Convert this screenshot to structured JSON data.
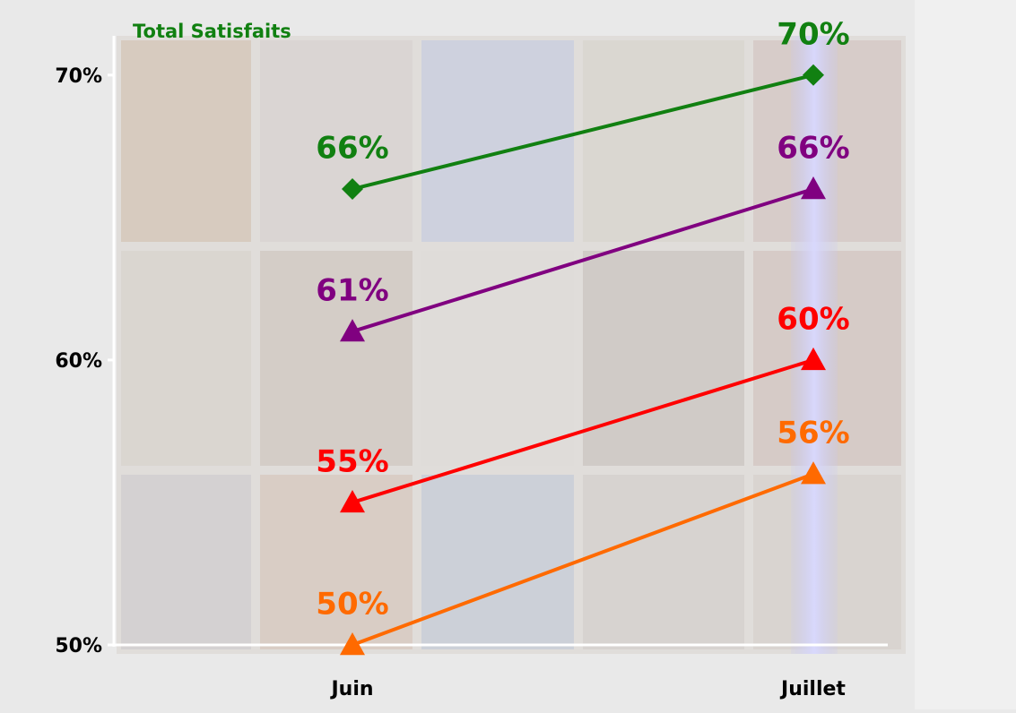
{
  "chart_data": {
    "type": "line",
    "categories": [
      "Juin",
      "Juillet"
    ],
    "series": [
      {
        "name": "Total Satisfaits",
        "color": "#118011",
        "marker": "diamond",
        "values": [
          66,
          70
        ],
        "value_labels": [
          "66%",
          "70%"
        ]
      },
      {
        "color": "#800080",
        "marker": "triangle",
        "values": [
          61,
          66
        ],
        "value_labels": [
          "61%",
          "66%"
        ]
      },
      {
        "color": "#ff0000",
        "marker": "triangle",
        "values": [
          55,
          60
        ],
        "value_labels": [
          "55%",
          "60%"
        ]
      },
      {
        "color": "#ff6a00",
        "marker": "triangle",
        "values": [
          50,
          56
        ],
        "value_labels": [
          "50%",
          "56%"
        ]
      }
    ],
    "ylim": [
      50,
      71
    ],
    "yticks": [
      {
        "value": 50,
        "label": "50%"
      },
      {
        "value": 60,
        "label": "60%"
      },
      {
        "value": 70,
        "label": "70%"
      }
    ],
    "grid": false
  }
}
